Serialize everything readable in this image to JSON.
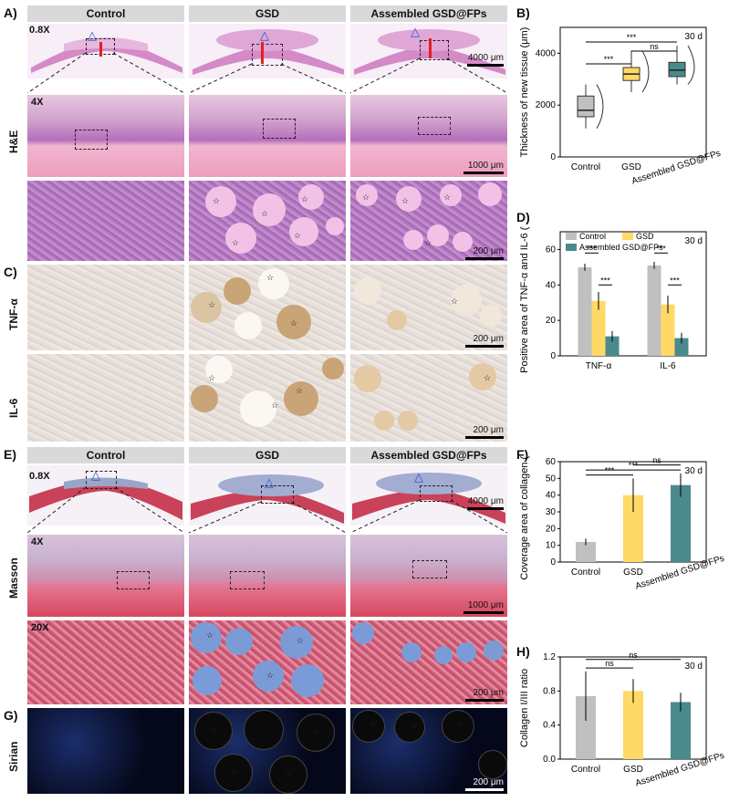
{
  "panel_letters": {
    "A": "A)",
    "B": "B)",
    "C": "C)",
    "D": "D)",
    "E": "E)",
    "F": "F)",
    "G": "G)",
    "H": "H)"
  },
  "col_headers": [
    "Control",
    "GSD",
    "Assembled GSD@FPs"
  ],
  "row_labels": {
    "he": "H&E",
    "tnf": "TNF-α",
    "il6": "IL-6",
    "masson": "Masson",
    "sirian": "Sirian"
  },
  "mag": {
    "low": "0.8X",
    "mid": "4X",
    "high": "20X"
  },
  "scalebars": {
    "s4000": "4000 μm",
    "s1000": "1000 μm",
    "s200": "200 μm"
  },
  "star_glyph": "☆",
  "triangle_glyph": "△",
  "colors": {
    "control": "#c0c0c0",
    "gsd": "#ffd966",
    "assembled": "#4a8a8c",
    "header_bg": "#d9d9d9"
  },
  "chart_data": [
    {
      "id": "B",
      "type": "box",
      "title": "",
      "note": "30 d",
      "ylabel": "Thickness of new tissue (μm)",
      "ylim": [
        0,
        5000
      ],
      "yticks": [
        "0",
        "2000",
        "4000"
      ],
      "categories": [
        "Control",
        "GSD",
        "Assembled GSD@FPs"
      ],
      "boxes": [
        {
          "min": 1100,
          "q1": 1550,
          "median": 1800,
          "q3": 2350,
          "max": 2800
        },
        {
          "min": 2500,
          "q1": 2950,
          "median": 3200,
          "q3": 3450,
          "max": 4100
        },
        {
          "min": 2800,
          "q1": 3100,
          "median": 3350,
          "q3": 3650,
          "max": 4300
        }
      ],
      "significance": [
        {
          "pair": [
            0,
            1
          ],
          "label": "***"
        },
        {
          "pair": [
            1,
            2
          ],
          "label": "ns"
        },
        {
          "pair": [
            0,
            2
          ],
          "label": "***"
        }
      ]
    },
    {
      "id": "D",
      "type": "bar",
      "note": "30 d",
      "ylabel": "Positive area of TNF-α and IL-6 (%)",
      "ylim": [
        0,
        70
      ],
      "yticks": [
        "0",
        "20",
        "40",
        "60"
      ],
      "categories": [
        "TNF-α",
        "IL-6"
      ],
      "series": [
        {
          "name": "Control",
          "values": [
            50,
            51
          ],
          "err": [
            2,
            2
          ]
        },
        {
          "name": "GSD",
          "values": [
            31,
            29
          ],
          "err": [
            5,
            5
          ]
        },
        {
          "name": "Assembled GSD@FPs",
          "values": [
            11,
            10
          ],
          "err": [
            3,
            3
          ]
        }
      ],
      "significance_labels": [
        "***",
        "***",
        "***",
        "***"
      ]
    },
    {
      "id": "F",
      "type": "bar",
      "note": "30 d",
      "ylabel": "Coverage area of collagen (%)",
      "ylim": [
        0,
        60
      ],
      "yticks": [
        "0",
        "10",
        "20",
        "30",
        "40",
        "50",
        "60"
      ],
      "categories": [
        "Control",
        "GSD",
        "Assembled GSD@FPs"
      ],
      "values": [
        12,
        40,
        46
      ],
      "err": [
        2,
        10,
        7
      ],
      "significance": [
        {
          "pair": [
            1,
            2
          ],
          "label": "ns"
        },
        {
          "pair": [
            0,
            2
          ],
          "label": "***"
        },
        {
          "pair": [
            0,
            1
          ],
          "label": "***"
        }
      ]
    },
    {
      "id": "H",
      "type": "bar",
      "note": "30 d",
      "ylabel": "Collagen I/III ratio",
      "ylim": [
        0,
        1.2
      ],
      "yticks": [
        "0.0",
        "0.4",
        "0.8",
        "1.2"
      ],
      "categories": [
        "Control",
        "GSD",
        "Assembled GSD@FPs"
      ],
      "values": [
        0.74,
        0.8,
        0.67
      ],
      "err": [
        0.29,
        0.14,
        0.11
      ],
      "significance": [
        {
          "pair": [
            0,
            1
          ],
          "label": "ns"
        },
        {
          "pair": [
            0,
            2
          ],
          "label": "ns"
        }
      ]
    }
  ]
}
